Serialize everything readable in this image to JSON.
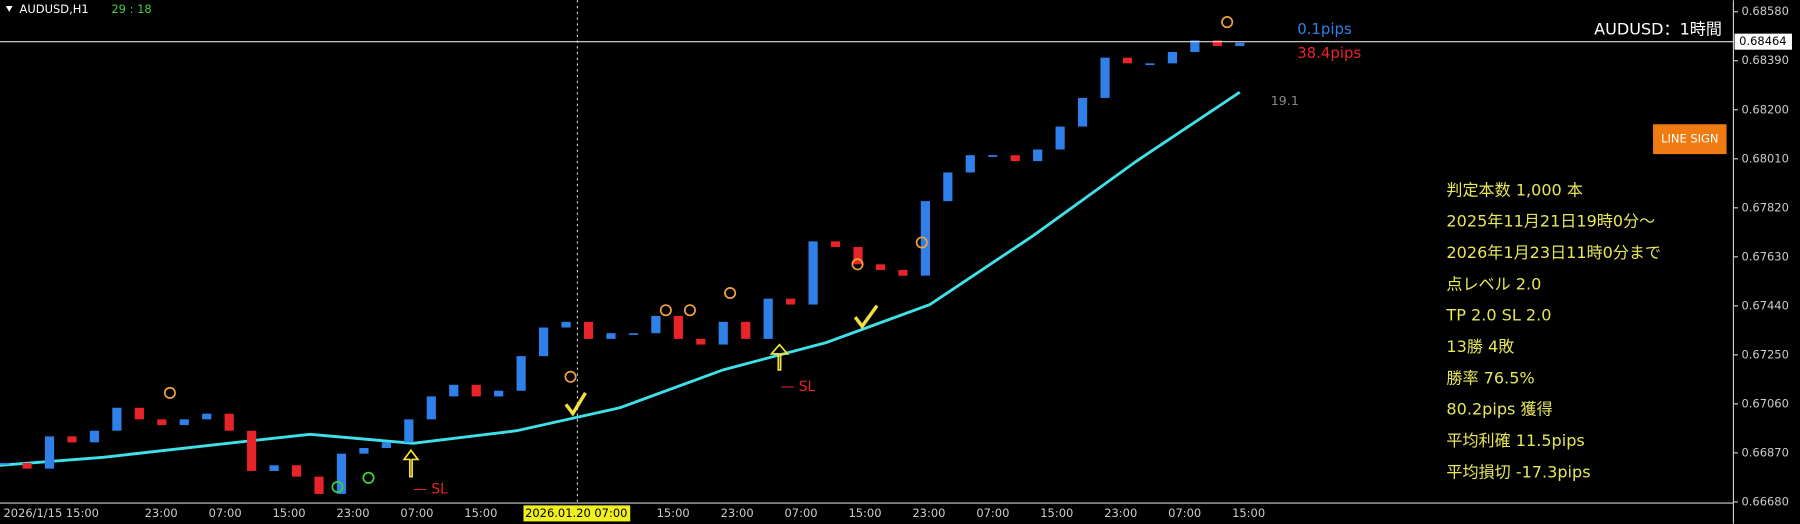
{
  "header": {
    "symbol": "AUDUSD,H1",
    "timer": "29 : 18",
    "spread": "0.1pips",
    "profit": "38.4pips",
    "title": "AUDUSD：1時間",
    "band_value": "19.1",
    "button": "LINE SIGN"
  },
  "chart_data": {
    "type": "candlestick",
    "closes": [
      0.66831,
      0.66809,
      0.66934,
      0.66911,
      0.66956,
      0.67045,
      0.67,
      0.66978,
      0.67,
      0.67022,
      0.66956,
      0.668,
      0.66822,
      0.66778,
      0.66711,
      0.66867,
      0.66889,
      0.66911,
      0.67,
      0.67089,
      0.67134,
      0.67089,
      0.67111,
      0.67245,
      0.67356,
      0.67378,
      0.67312,
      0.67334,
      0.67334,
      0.67401,
      0.67312,
      0.6729,
      0.67378,
      0.67312,
      0.67468,
      0.67445,
      0.6769,
      0.67668,
      0.67601,
      0.67579,
      0.67557,
      0.67846,
      0.67957,
      0.68024,
      0.68024,
      0.68001,
      0.68046,
      0.68135,
      0.68246,
      0.68402,
      0.6838,
      0.6838,
      0.68424,
      0.68469,
      0.68447,
      0.6846
    ],
    "ma_values": [
      0.66822,
      0.66853,
      0.66898,
      0.66942,
      0.66907,
      0.66956,
      0.67045,
      0.67192,
      0.67298,
      0.67445,
      0.67712,
      0.68001,
      0.68268
    ],
    "up_color": "#2f80e8",
    "down_color": "#e8242a",
    "ma_color": "#3fe0e8",
    "ylim": [
      0.6668,
      0.6858
    ],
    "yticks": [
      {
        "value": 0.6858,
        "label": "0.68580"
      },
      {
        "value": 0.6839,
        "label": "0.68390"
      },
      {
        "value": 0.682,
        "label": "0.68200"
      },
      {
        "value": 0.6801,
        "label": "0.68010"
      },
      {
        "value": 0.6782,
        "label": "0.67820"
      },
      {
        "value": 0.6763,
        "label": "0.67630"
      },
      {
        "value": 0.6744,
        "label": "0.67440"
      },
      {
        "value": 0.6725,
        "label": "0.67250"
      },
      {
        "value": 0.6706,
        "label": "0.67060"
      },
      {
        "value": 0.6687,
        "label": "0.66870"
      },
      {
        "value": 0.6668,
        "label": "0.66680"
      }
    ],
    "current_price": {
      "value": 0.68464,
      "label": "0.68464"
    },
    "x_labels": [
      "2026/1/15 15:00",
      "23:00",
      "07:00",
      "15:00",
      "23:00",
      "07:00",
      "15:00",
      "23:00",
      "15:00",
      "23:00",
      "07:00",
      "15:00",
      "23:00",
      "07:00",
      "15:00",
      "23:00",
      "07:00",
      "15:00"
    ],
    "cursor_time": "2026.01.20 07:00",
    "sl_labels": [
      "— SL",
      "— SL"
    ]
  },
  "stats": [
    "判定本数 1,000 本",
    "2025年11月21日19時0分～",
    "2026年1月23日11時0分まで",
    "点レベル 2.0",
    "TP 2.0 SL 2.0",
    "13勝 4敗",
    "勝率 76.5%",
    "80.2pips 獲得",
    "平均利確 11.5pips",
    "平均損切 -17.3pips"
  ]
}
